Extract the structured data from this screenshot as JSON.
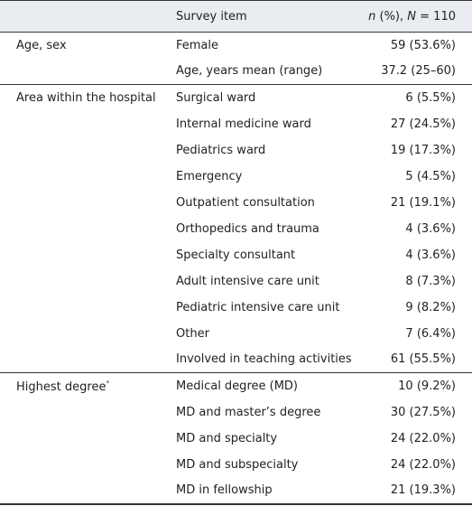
{
  "table": {
    "header": {
      "item": "Survey item",
      "value": [
        "n",
        " (%), ",
        "N",
        " = 110"
      ]
    },
    "groups": [
      {
        "label": "Age, sex",
        "rows": [
          [
            "Female",
            "59 (53.6%)"
          ],
          [
            "Age, years mean (range)",
            "37.2 (25–60)"
          ]
        ]
      },
      {
        "label": "Area within the hospital",
        "rows": [
          [
            "Surgical ward",
            "6 (5.5%)"
          ],
          [
            "Internal medicine ward",
            "27 (24.5%)"
          ],
          [
            "Pediatrics ward",
            "19 (17.3%)"
          ],
          [
            "Emergency",
            "5 (4.5%)"
          ],
          [
            "Outpatient consultation",
            "21 (19.1%)"
          ],
          [
            "Orthopedics and trauma",
            "4 (3.6%)"
          ],
          [
            "Specialty consultant",
            "4 (3.6%)"
          ],
          [
            "Adult intensive care unit",
            "8 (7.3%)"
          ],
          [
            "Pediatric intensive care unit",
            "9 (8.2%)"
          ],
          [
            "Other",
            "7 (6.4%)"
          ],
          [
            "Involved in teaching activities",
            "61 (55.5%)"
          ]
        ]
      },
      {
        "label": "Highest degree",
        "note": "*",
        "rows": [
          [
            "Medical degree (MD)",
            "10 (9.2%)"
          ],
          [
            "MD and master’s degree",
            "30 (27.5%)"
          ],
          [
            "MD and specialty",
            "24 (22.0%)"
          ],
          [
            "MD and subspecialty",
            "24 (22.0%)"
          ],
          [
            "MD in fellowship",
            "21 (19.3%)"
          ]
        ]
      }
    ]
  }
}
